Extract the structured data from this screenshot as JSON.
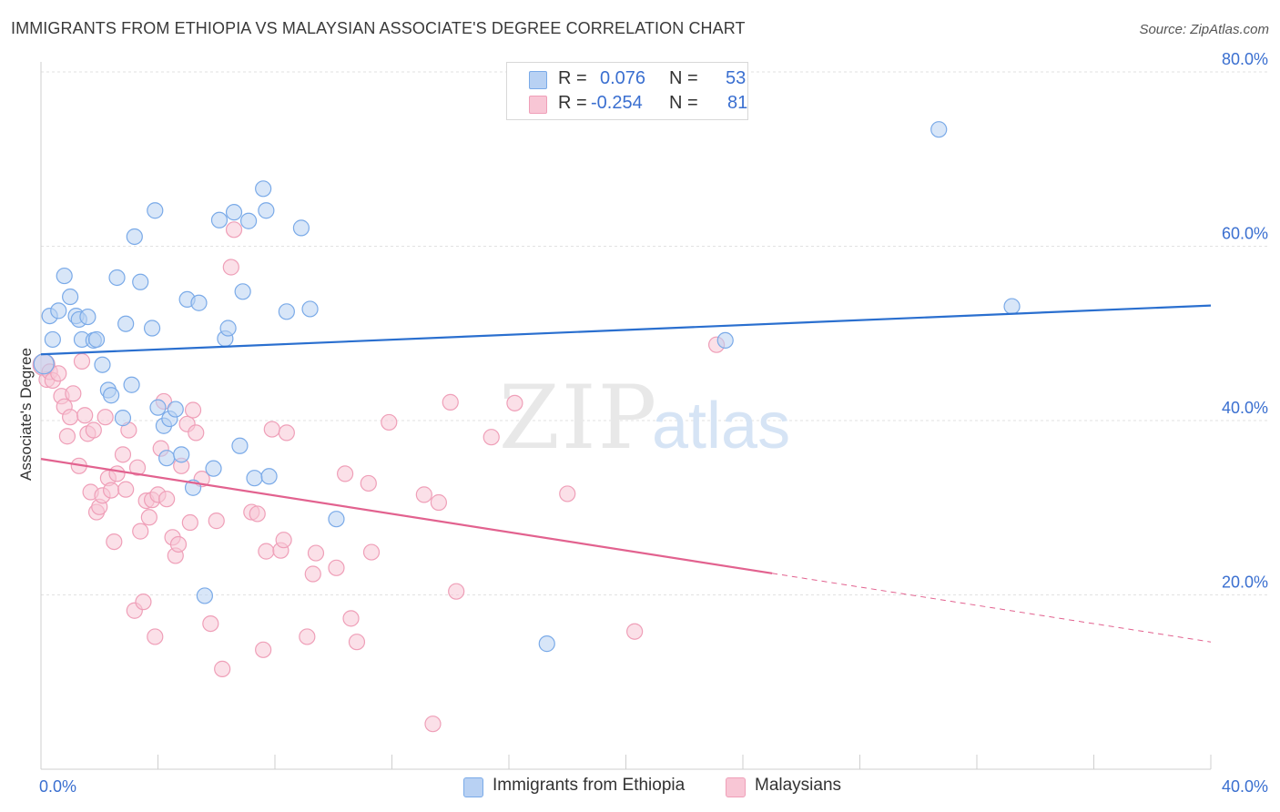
{
  "title": "IMMIGRANTS FROM ETHIOPIA VS MALAYSIAN ASSOCIATE'S DEGREE CORRELATION CHART",
  "source": "Source: ZipAtlas.com",
  "watermark": {
    "zip": "ZIP",
    "atlas": "atlas"
  },
  "legend_stats": [
    {
      "r_label": "R =",
      "r_value": "0.076",
      "n_label": "N =",
      "n_value": "53"
    },
    {
      "r_label": "R =",
      "r_value": "-0.254",
      "n_label": "N =",
      "n_value": "81"
    }
  ],
  "chart_data": {
    "type": "scatter",
    "title": "IMMIGRANTS FROM ETHIOPIA VS MALAYSIAN ASSOCIATE'S DEGREE CORRELATION CHART",
    "xlabel": "",
    "ylabel": "Associate's Degree",
    "xlim": [
      0,
      40
    ],
    "ylim": [
      0,
      80
    ],
    "x_tick_labels": [
      "0.0%",
      "40.0%"
    ],
    "y_ticks": [
      20,
      40,
      60,
      80
    ],
    "y_tick_labels": [
      "20.0%",
      "40.0%",
      "60.0%",
      "80.0%"
    ],
    "grid": true,
    "series": [
      {
        "name": "Immigrants from Ethiopia",
        "color": "#7aaae8",
        "fill": "#b8d1f3",
        "line_color": "#2a6fcf",
        "trend": {
          "x": [
            0,
            40
          ],
          "y": [
            47.6,
            53.2
          ],
          "dashed_from": null
        },
        "points": [
          [
            0.1,
            46.5
          ],
          [
            0.3,
            52
          ],
          [
            0.4,
            49.3
          ],
          [
            0.6,
            52.6
          ],
          [
            0.8,
            56.6
          ],
          [
            1.0,
            54.2
          ],
          [
            1.2,
            52
          ],
          [
            1.3,
            51.6
          ],
          [
            1.4,
            49.3
          ],
          [
            1.6,
            51.9
          ],
          [
            1.8,
            49.2
          ],
          [
            1.9,
            49.3
          ],
          [
            2.1,
            46.4
          ],
          [
            2.3,
            43.5
          ],
          [
            2.4,
            42.9
          ],
          [
            2.6,
            56.4
          ],
          [
            2.8,
            40.3
          ],
          [
            2.9,
            51.1
          ],
          [
            3.1,
            44.1
          ],
          [
            3.2,
            61.1
          ],
          [
            3.4,
            55.9
          ],
          [
            3.8,
            50.6
          ],
          [
            3.9,
            64.1
          ],
          [
            4.0,
            41.5
          ],
          [
            4.2,
            39.4
          ],
          [
            4.3,
            35.7
          ],
          [
            4.4,
            40.2
          ],
          [
            4.6,
            41.3
          ],
          [
            4.8,
            36.1
          ],
          [
            5.0,
            53.9
          ],
          [
            5.2,
            32.3
          ],
          [
            5.4,
            53.5
          ],
          [
            5.6,
            19.9
          ],
          [
            5.9,
            34.5
          ],
          [
            6.1,
            63.0
          ],
          [
            6.3,
            49.4
          ],
          [
            6.4,
            50.6
          ],
          [
            6.6,
            63.9
          ],
          [
            6.8,
            37.1
          ],
          [
            6.9,
            54.8
          ],
          [
            7.1,
            62.9
          ],
          [
            7.3,
            33.4
          ],
          [
            7.6,
            66.6
          ],
          [
            7.7,
            64.1
          ],
          [
            7.8,
            33.6
          ],
          [
            8.4,
            52.5
          ],
          [
            8.9,
            62.1
          ],
          [
            9.2,
            52.8
          ],
          [
            10.1,
            28.7
          ],
          [
            17.3,
            14.4
          ],
          [
            23.4,
            49.2
          ],
          [
            30.7,
            73.4
          ],
          [
            33.2,
            53.1
          ]
        ]
      },
      {
        "name": "Malaysians",
        "color": "#ef9fb8",
        "fill": "#f8c6d5",
        "line_color": "#e2628f",
        "trend": {
          "x": [
            0,
            40
          ],
          "y": [
            35.6,
            14.6
          ],
          "dashed_from": 25.0
        },
        "points": [
          [
            0.1,
            46.4
          ],
          [
            0.2,
            44.7
          ],
          [
            0.3,
            45.6
          ],
          [
            0.4,
            44.6
          ],
          [
            0.6,
            45.4
          ],
          [
            0.7,
            42.8
          ],
          [
            0.8,
            41.6
          ],
          [
            0.9,
            38.2
          ],
          [
            1.0,
            40.4
          ],
          [
            1.1,
            43.1
          ],
          [
            1.3,
            34.8
          ],
          [
            1.4,
            46.8
          ],
          [
            1.5,
            40.6
          ],
          [
            1.6,
            38.5
          ],
          [
            1.7,
            31.8
          ],
          [
            1.8,
            38.9
          ],
          [
            1.9,
            29.5
          ],
          [
            2.0,
            30.1
          ],
          [
            2.1,
            31.4
          ],
          [
            2.2,
            40.4
          ],
          [
            2.3,
            33.4
          ],
          [
            2.4,
            32.0
          ],
          [
            2.5,
            26.1
          ],
          [
            2.6,
            33.9
          ],
          [
            2.8,
            36.1
          ],
          [
            2.9,
            32.1
          ],
          [
            3.0,
            38.9
          ],
          [
            3.2,
            18.2
          ],
          [
            3.3,
            34.6
          ],
          [
            3.4,
            27.3
          ],
          [
            3.5,
            19.2
          ],
          [
            3.6,
            30.8
          ],
          [
            3.7,
            28.9
          ],
          [
            3.8,
            30.9
          ],
          [
            3.9,
            15.2
          ],
          [
            4.0,
            31.5
          ],
          [
            4.1,
            36.8
          ],
          [
            4.2,
            42.2
          ],
          [
            4.3,
            31.0
          ],
          [
            4.5,
            26.6
          ],
          [
            4.6,
            24.5
          ],
          [
            4.7,
            25.8
          ],
          [
            4.8,
            34.8
          ],
          [
            5.0,
            39.6
          ],
          [
            5.1,
            28.3
          ],
          [
            5.2,
            41.2
          ],
          [
            5.3,
            38.6
          ],
          [
            5.5,
            33.3
          ],
          [
            5.8,
            16.7
          ],
          [
            6.0,
            28.5
          ],
          [
            6.2,
            11.5
          ],
          [
            6.5,
            57.6
          ],
          [
            6.6,
            61.9
          ],
          [
            7.2,
            29.5
          ],
          [
            7.4,
            29.3
          ],
          [
            7.6,
            13.7
          ],
          [
            7.7,
            25.0
          ],
          [
            7.9,
            39.0
          ],
          [
            8.2,
            25.1
          ],
          [
            8.3,
            26.3
          ],
          [
            8.4,
            38.6
          ],
          [
            9.1,
            15.2
          ],
          [
            9.3,
            22.4
          ],
          [
            9.4,
            24.8
          ],
          [
            10.1,
            23.1
          ],
          [
            10.4,
            33.9
          ],
          [
            10.6,
            17.3
          ],
          [
            10.8,
            14.6
          ],
          [
            11.2,
            32.8
          ],
          [
            11.3,
            24.9
          ],
          [
            11.9,
            39.8
          ],
          [
            13.1,
            31.5
          ],
          [
            13.4,
            5.2
          ],
          [
            13.6,
            30.6
          ],
          [
            14.0,
            42.1
          ],
          [
            14.2,
            20.4
          ],
          [
            15.4,
            38.1
          ],
          [
            16.2,
            42.0
          ],
          [
            18.0,
            31.6
          ],
          [
            20.3,
            15.8
          ],
          [
            23.1,
            48.7
          ]
        ]
      }
    ]
  },
  "bottom_legend": [
    "Immigrants from Ethiopia",
    "Malaysians"
  ]
}
